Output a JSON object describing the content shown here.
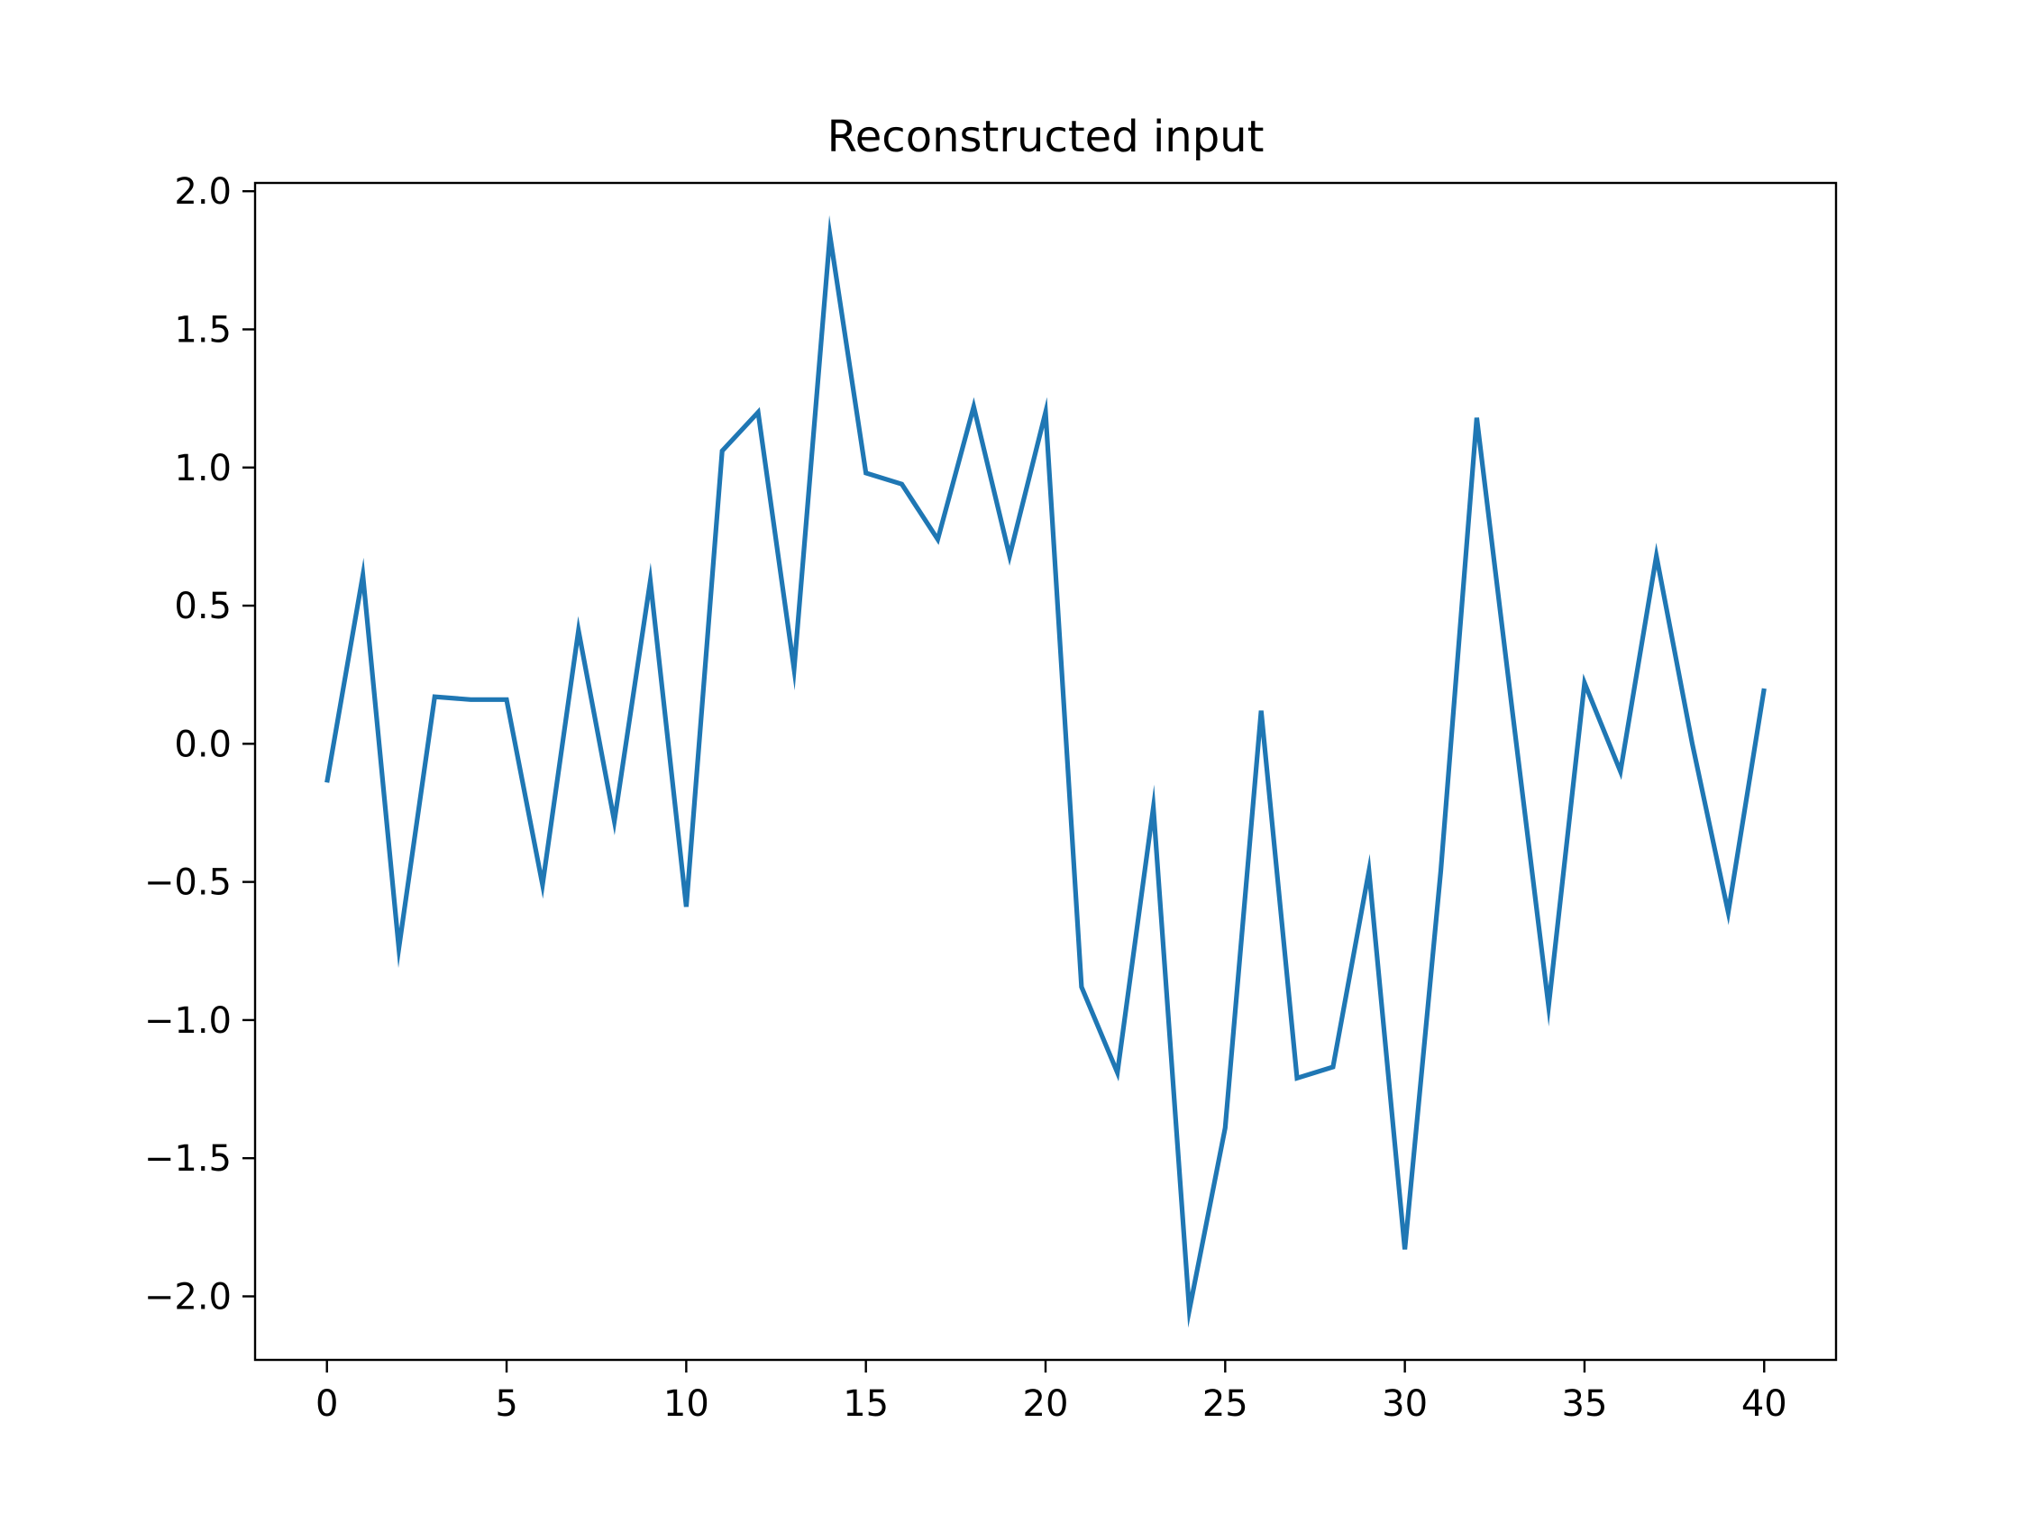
{
  "chart_data": {
    "type": "line",
    "title": "Reconstructed input",
    "xlabel": "",
    "ylabel": "",
    "xlim": [
      -2,
      42
    ],
    "ylim": [
      -2.23,
      2.03
    ],
    "xticks": [
      0,
      5,
      10,
      15,
      20,
      25,
      30,
      35,
      40
    ],
    "xtick_labels": [
      "0",
      "5",
      "10",
      "15",
      "20",
      "25",
      "30",
      "35",
      "40"
    ],
    "yticks": [
      2.0,
      1.5,
      1.0,
      0.5,
      0.0,
      -0.5,
      -1.0,
      -1.5,
      -2.0
    ],
    "ytick_labels": [
      "2.0",
      "1.5",
      "1.0",
      "0.5",
      "0.0",
      "−0.5",
      "−1.0",
      "−1.5",
      "−2.0"
    ],
    "grid": false,
    "legend": "none",
    "series": [
      {
        "color": "#1f77b4",
        "x": [
          0,
          1,
          2,
          3,
          4,
          5,
          6,
          7,
          8,
          9,
          10,
          11,
          12,
          13,
          14,
          15,
          16,
          17,
          18,
          19,
          20,
          21,
          22,
          23,
          24,
          25,
          26,
          27,
          28,
          29,
          30,
          31,
          32,
          33,
          34,
          35,
          36,
          37,
          38,
          39,
          40
        ],
        "values": [
          -0.14,
          0.61,
          -0.74,
          0.17,
          0.16,
          0.16,
          -0.51,
          0.41,
          -0.28,
          0.59,
          -0.59,
          1.06,
          1.2,
          0.27,
          1.84,
          0.98,
          0.94,
          0.74,
          1.22,
          0.68,
          1.2,
          -0.88,
          -1.19,
          -0.23,
          -2.05,
          -1.39,
          0.12,
          -1.21,
          -1.17,
          -0.46,
          -1.83,
          -0.46,
          1.18,
          0.11,
          -0.95,
          0.22,
          -0.1,
          0.68,
          0.0,
          -0.61,
          0.2
        ]
      }
    ]
  }
}
